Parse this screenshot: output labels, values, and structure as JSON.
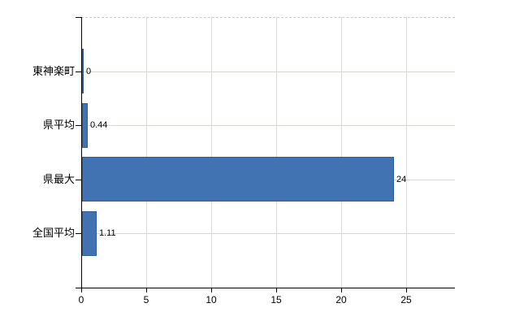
{
  "chart_data": {
    "type": "bar",
    "orientation": "horizontal",
    "title": "",
    "categories": [
      "東神楽町",
      "県平均",
      "県最大",
      "全国平均"
    ],
    "values": [
      0,
      0.44,
      24,
      1.11
    ],
    "value_labels": [
      "0",
      "0.44",
      "24",
      "1.11"
    ],
    "x_ticks": [
      0,
      5,
      10,
      15,
      20,
      25
    ],
    "x_tick_labels": [
      "0",
      "5",
      "10",
      "15",
      "20",
      "25"
    ],
    "xlim": [
      0,
      28.75
    ],
    "grid": true,
    "legend": "none",
    "bar_color": "#4173b3",
    "bar_border_color": "#2e5c9a",
    "gridline_color": "#d6dcd4",
    "axis_color": "#000000",
    "background_color": "#ffffff"
  }
}
